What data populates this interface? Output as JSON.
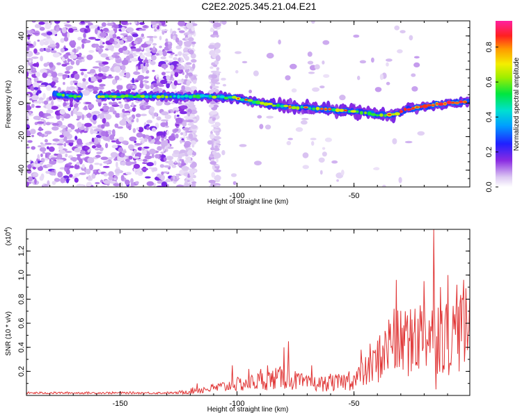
{
  "title": "C2E2.2025.345.21.04.E21",
  "chart_data": [
    {
      "type": "heatmap",
      "title": "C2E2.2025.345.21.04.E21",
      "xlabel": "Height of straight line (km)",
      "ylabel": "Frequency (Hz)",
      "xlim": [
        -190,
        -0.5
      ],
      "ylim": [
        -50,
        49
      ],
      "xticks": [
        -150,
        -100,
        -50
      ],
      "yticks": [
        -40,
        -20,
        0,
        20,
        40
      ],
      "colorbar": {
        "label": "Normalized spectral amplitude",
        "range": [
          0,
          0.95
        ],
        "ticks": [
          0.0,
          0.2,
          0.4,
          0.6,
          0.8
        ],
        "tick_labels": [
          "0.0",
          "0.2",
          "0.4",
          "0.6",
          "0.8"
        ]
      },
      "ridge": {
        "points": [
          [
            -176,
            5
          ],
          [
            -170,
            4
          ],
          [
            -160,
            4
          ],
          [
            -150,
            4
          ],
          [
            -140,
            4
          ],
          [
            -125,
            4
          ],
          [
            -115,
            4
          ],
          [
            -100,
            3
          ],
          [
            -90,
            0
          ],
          [
            -80,
            -2
          ],
          [
            -70,
            -3
          ],
          [
            -60,
            -4
          ],
          [
            -50,
            -5
          ],
          [
            -40,
            -7
          ],
          [
            -33,
            -7
          ],
          [
            -28,
            -4
          ],
          [
            -20,
            -2
          ],
          [
            -10,
            0
          ],
          [
            -0.5,
            1
          ]
        ]
      }
    },
    {
      "type": "line",
      "xlabel": "Height of straight line (km)",
      "ylabel": "SNR (10 * v/v)",
      "y_scale_label": "(x10",
      "y_scale_exponent": "4",
      "xlim": [
        -190,
        -0.5
      ],
      "ylim": [
        0,
        1.38
      ],
      "xticks": [
        -150,
        -100,
        -50
      ],
      "yticks": [
        0.2,
        0.4,
        0.6,
        0.8,
        1.0,
        1.2
      ],
      "series": [
        {
          "name": "SNR",
          "color": "#e03535",
          "envelope": [
            [
              -190,
              0.02
            ],
            [
              -150,
              0.03
            ],
            [
              -125,
              0.03
            ],
            [
              -120,
              0.05
            ],
            [
              -110,
              0.08
            ],
            [
              -100,
              0.12
            ],
            [
              -90,
              0.16
            ],
            [
              -80,
              0.2
            ],
            [
              -70,
              0.13
            ],
            [
              -60,
              0.13
            ],
            [
              -50,
              0.17
            ],
            [
              -45,
              0.26
            ],
            [
              -40,
              0.38
            ],
            [
              -35,
              0.52
            ],
            [
              -30,
              0.58
            ],
            [
              -25,
              0.58
            ],
            [
              -20,
              0.7
            ],
            [
              -15,
              0.72
            ],
            [
              -10,
              0.64
            ],
            [
              -5,
              0.7
            ],
            [
              -0.5,
              0.72
            ]
          ],
          "spikes": [
            [
              -117,
              0.1
            ],
            [
              -102,
              0.25
            ],
            [
              -95,
              0.22
            ],
            [
              -90,
              0.22
            ],
            [
              -87,
              0.25
            ],
            [
              -80,
              0.4
            ],
            [
              -78,
              0.45
            ],
            [
              -74,
              0.18
            ],
            [
              -68,
              0.25
            ],
            [
              -60,
              0.18
            ],
            [
              -52,
              0.2
            ],
            [
              -47,
              0.38
            ],
            [
              -43,
              0.43
            ],
            [
              -39,
              0.5
            ],
            [
              -35,
              0.63
            ],
            [
              -33,
              0.72
            ],
            [
              -32,
              0.96
            ],
            [
              -28,
              0.7
            ],
            [
              -24,
              0.72
            ],
            [
              -20,
              0.95
            ],
            [
              -16,
              1.38
            ],
            [
              -15,
              0.05
            ],
            [
              -13,
              0.9
            ],
            [
              -10,
              1.0
            ],
            [
              -8,
              0.55
            ],
            [
              -6,
              0.92
            ],
            [
              -4,
              0.45
            ],
            [
              -3,
              0.96
            ]
          ]
        }
      ]
    }
  ]
}
